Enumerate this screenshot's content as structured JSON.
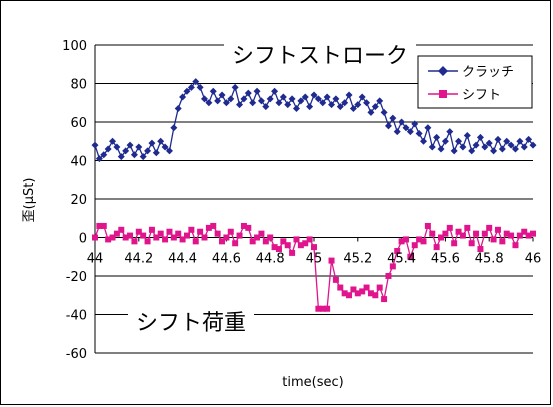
{
  "chart_data": {
    "type": "line",
    "xlabel": "time(sec)",
    "ylabel": "歪(μSt)",
    "xlim": [
      44,
      46
    ],
    "ylim": [
      -60,
      100
    ],
    "x_ticks": [
      "44",
      "44.2",
      "44.4",
      "44.6",
      "44.8",
      "45",
      "45.2",
      "45.4",
      "45.6",
      "45.8",
      "46"
    ],
    "y_ticks": [
      "100",
      "80",
      "60",
      "40",
      "20",
      "0",
      "-20",
      "-40",
      "-60"
    ],
    "grid": "horizontal",
    "legend_position": "top-right",
    "annotations": [
      "シフトストローク",
      "シフト荷重"
    ],
    "series": [
      {
        "name": "クラッチ",
        "color": "#1f2b8f",
        "marker": "diamond",
        "x": [
          44.0,
          44.02,
          44.04,
          44.06,
          44.08,
          44.1,
          44.12,
          44.14,
          44.16,
          44.18,
          44.2,
          44.22,
          44.24,
          44.26,
          44.28,
          44.3,
          44.32,
          44.34,
          44.36,
          44.38,
          44.4,
          44.42,
          44.44,
          44.46,
          44.48,
          44.5,
          44.52,
          44.54,
          44.56,
          44.58,
          44.6,
          44.62,
          44.64,
          44.66,
          44.68,
          44.7,
          44.72,
          44.74,
          44.76,
          44.78,
          44.8,
          44.82,
          44.84,
          44.86,
          44.88,
          44.9,
          44.92,
          44.94,
          44.96,
          44.98,
          45.0,
          45.02,
          45.04,
          45.06,
          45.08,
          45.1,
          45.12,
          45.14,
          45.16,
          45.18,
          45.2,
          45.22,
          45.24,
          45.26,
          45.28,
          45.3,
          45.32,
          45.34,
          45.36,
          45.38,
          45.4,
          45.42,
          45.44,
          45.46,
          45.48,
          45.5,
          45.52,
          45.54,
          45.56,
          45.58,
          45.6,
          45.62,
          45.64,
          45.66,
          45.68,
          45.7,
          45.72,
          45.74,
          45.76,
          45.78,
          45.8,
          45.82,
          45.84,
          45.86,
          45.88,
          45.9,
          45.92,
          45.94,
          45.96,
          45.98,
          46.0
        ],
        "values": [
          48,
          41,
          43,
          46,
          50,
          47,
          42,
          45,
          48,
          43,
          47,
          42,
          45,
          49,
          44,
          50,
          47,
          45,
          57,
          67,
          73,
          76,
          78,
          81,
          78,
          72,
          70,
          76,
          71,
          74,
          70,
          72,
          78,
          69,
          72,
          75,
          70,
          76,
          71,
          68,
          72,
          76,
          70,
          73,
          69,
          72,
          67,
          71,
          73,
          68,
          74,
          72,
          70,
          73,
          69,
          72,
          68,
          70,
          74,
          67,
          69,
          73,
          70,
          65,
          68,
          71,
          65,
          58,
          62,
          55,
          60,
          57,
          55,
          59,
          54,
          50,
          57,
          47,
          52,
          46,
          50,
          55,
          45,
          50,
          47,
          53,
          45,
          48,
          52,
          47,
          49,
          45,
          51,
          46,
          50,
          48,
          46,
          50,
          47,
          51,
          48
        ]
      },
      {
        "name": "シフト",
        "color": "#e0148c",
        "marker": "square",
        "x": [
          44.0,
          44.02,
          44.04,
          44.06,
          44.08,
          44.1,
          44.12,
          44.14,
          44.16,
          44.18,
          44.2,
          44.22,
          44.24,
          44.26,
          44.28,
          44.3,
          44.32,
          44.34,
          44.36,
          44.38,
          44.4,
          44.42,
          44.44,
          44.46,
          44.48,
          44.5,
          44.52,
          44.54,
          44.56,
          44.58,
          44.6,
          44.62,
          44.64,
          44.66,
          44.68,
          44.7,
          44.72,
          44.74,
          44.76,
          44.78,
          44.8,
          44.82,
          44.84,
          44.86,
          44.88,
          44.9,
          44.92,
          44.94,
          44.96,
          44.98,
          45.0,
          45.02,
          45.04,
          45.06,
          45.08,
          45.1,
          45.12,
          45.14,
          45.16,
          45.18,
          45.2,
          45.22,
          45.24,
          45.26,
          45.28,
          45.3,
          45.32,
          45.34,
          45.36,
          45.38,
          45.4,
          45.42,
          45.44,
          45.46,
          45.48,
          45.5,
          45.52,
          45.54,
          45.56,
          45.58,
          45.6,
          45.62,
          45.64,
          45.66,
          45.68,
          45.7,
          45.72,
          45.74,
          45.76,
          45.78,
          45.8,
          45.82,
          45.84,
          45.86,
          45.88,
          45.9,
          45.92,
          45.94,
          45.96,
          45.98,
          46.0
        ],
        "values": [
          0,
          6,
          6,
          -1,
          0,
          2,
          4,
          0,
          1,
          -2,
          3,
          1,
          -2,
          4,
          0,
          2,
          -1,
          3,
          0,
          2,
          -1,
          1,
          4,
          -2,
          3,
          0,
          5,
          6,
          2,
          -2,
          0,
          3,
          -3,
          1,
          6,
          5,
          -2,
          0,
          2,
          -2,
          0,
          -5,
          -6,
          -2,
          -4,
          -8,
          -1,
          -4,
          -3,
          -1,
          -5,
          -37,
          -37,
          -37,
          -12,
          -22,
          -26,
          -29,
          -30,
          -27,
          -29,
          -28,
          -26,
          -29,
          -30,
          -26,
          -32,
          -20,
          -15,
          -7,
          -2,
          -1,
          -10,
          -4,
          -1,
          -2,
          6,
          2,
          -5,
          0,
          2,
          5,
          -3,
          3,
          1,
          5,
          -3,
          2,
          -6,
          2,
          5,
          -1,
          4,
          -2,
          2,
          1,
          -4,
          1,
          3,
          1,
          2
        ]
      }
    ]
  }
}
